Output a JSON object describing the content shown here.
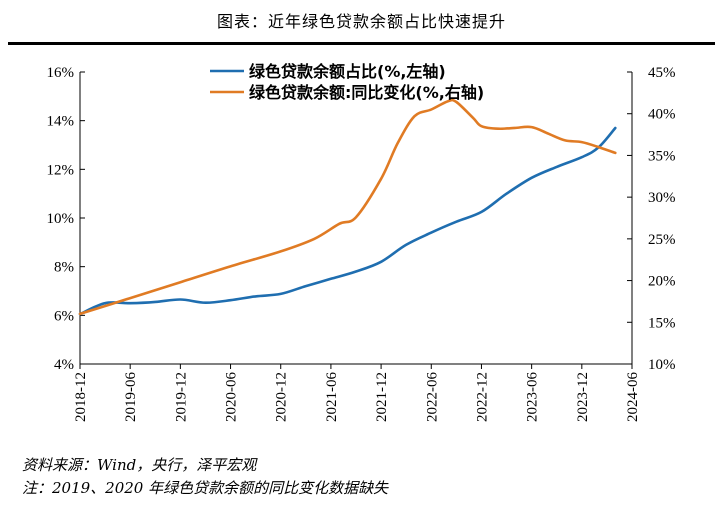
{
  "title": "图表：近年绿色贷款余额占比快速提升",
  "chart_data": {
    "type": "line",
    "left_axis": {
      "min": 4,
      "max": 16,
      "ticks": [
        4,
        6,
        8,
        10,
        12,
        14,
        16
      ],
      "suffix": "%"
    },
    "right_axis": {
      "min": 10,
      "max": 45,
      "ticks": [
        10,
        15,
        20,
        25,
        30,
        35,
        40,
        45
      ],
      "suffix": "%"
    },
    "x_ticks": [
      "2018-12",
      "2019-06",
      "2019-12",
      "2020-06",
      "2020-12",
      "2021-06",
      "2021-12",
      "2022-06",
      "2022-12",
      "2023-06",
      "2023-12",
      "2024-06"
    ],
    "x_range": [
      0,
      66
    ],
    "grid": false,
    "legend_position": "top-center",
    "series": [
      {
        "name": "绿色贷款余额占比(%,左轴)",
        "axis": "left",
        "color": "#1f6eb0",
        "points": [
          [
            0,
            6.05
          ],
          [
            3,
            6.5
          ],
          [
            6,
            6.5
          ],
          [
            9,
            6.55
          ],
          [
            12,
            6.65
          ],
          [
            15,
            6.52
          ],
          [
            18,
            6.62
          ],
          [
            21,
            6.78
          ],
          [
            24,
            6.88
          ],
          [
            27,
            7.2
          ],
          [
            30,
            7.5
          ],
          [
            33,
            7.8
          ],
          [
            36,
            8.2
          ],
          [
            39,
            8.9
          ],
          [
            42,
            9.4
          ],
          [
            45,
            9.85
          ],
          [
            48,
            10.25
          ],
          [
            51,
            11.0
          ],
          [
            54,
            11.65
          ],
          [
            57,
            12.1
          ],
          [
            60,
            12.5
          ],
          [
            62,
            12.9
          ],
          [
            64,
            13.7
          ]
        ]
      },
      {
        "name": "绿色贷款余额:同比变化(%,右轴)",
        "axis": "right",
        "color": "#e07b24",
        "points": [
          [
            0,
            16.0
          ],
          [
            6,
            17.9
          ],
          [
            12,
            19.8
          ],
          [
            18,
            21.7
          ],
          [
            24,
            23.5
          ],
          [
            28,
            25.0
          ],
          [
            31,
            26.8
          ],
          [
            33,
            27.6
          ],
          [
            36,
            32.2
          ],
          [
            38,
            36.5
          ],
          [
            40,
            39.7
          ],
          [
            42,
            40.5
          ],
          [
            44,
            41.5
          ],
          [
            45,
            41.4
          ],
          [
            47,
            39.5
          ],
          [
            48,
            38.5
          ],
          [
            50,
            38.2
          ],
          [
            52,
            38.3
          ],
          [
            54,
            38.4
          ],
          [
            56,
            37.6
          ],
          [
            58,
            36.8
          ],
          [
            60,
            36.6
          ],
          [
            62,
            36.0
          ],
          [
            64,
            35.3
          ]
        ]
      }
    ]
  },
  "notes": [
    "资料来源：Wind，央行，泽平宏观",
    "注：2019、2020 年绿色贷款余额的同比变化数据缺失"
  ]
}
